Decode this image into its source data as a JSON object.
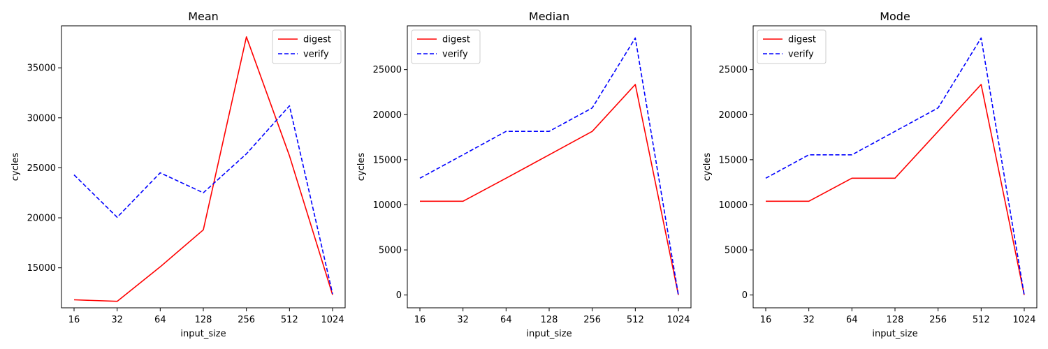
{
  "colors": {
    "digest": "#ff0000",
    "verify": "#0000ff"
  },
  "chart_data": [
    {
      "type": "line",
      "title": "Mean",
      "xlabel": "input_size",
      "ylabel": "cycles",
      "categories": [
        "16",
        "32",
        "64",
        "128",
        "256",
        "512",
        "1024"
      ],
      "yticks": [
        "15000",
        "20000",
        "25000",
        "30000",
        "35000"
      ],
      "ylim": [
        11000,
        39200
      ],
      "grid": false,
      "legend": "top-right",
      "series": [
        {
          "name": "digest",
          "style": "solid",
          "values": [
            11800,
            11650,
            15100,
            18800,
            38100,
            26200,
            12300
          ]
        },
        {
          "name": "verify",
          "style": "dashed",
          "values": [
            24300,
            20050,
            24500,
            22500,
            26400,
            31200,
            12400
          ]
        }
      ]
    },
    {
      "type": "line",
      "title": "Median",
      "xlabel": "input_size",
      "ylabel": "cycles",
      "categories": [
        "16",
        "32",
        "64",
        "128",
        "256",
        "512",
        "1024"
      ],
      "yticks": [
        "0",
        "5000",
        "10000",
        "15000",
        "20000",
        "25000"
      ],
      "ylim": [
        -1420,
        29850
      ],
      "grid": false,
      "legend": "top-left",
      "series": [
        {
          "name": "digest",
          "style": "solid",
          "values": [
            10400,
            10400,
            12950,
            15550,
            18150,
            23350,
            0
          ]
        },
        {
          "name": "verify",
          "style": "dashed",
          "values": [
            12950,
            15550,
            18150,
            18150,
            20750,
            28500,
            0
          ]
        }
      ]
    },
    {
      "type": "line",
      "title": "Mode",
      "xlabel": "input_size",
      "ylabel": "cycles",
      "categories": [
        "16",
        "32",
        "64",
        "128",
        "256",
        "512",
        "1024"
      ],
      "yticks": [
        "0",
        "5000",
        "10000",
        "15000",
        "20000",
        "25000"
      ],
      "ylim": [
        -1420,
        29850
      ],
      "grid": false,
      "legend": "top-left",
      "series": [
        {
          "name": "digest",
          "style": "solid",
          "values": [
            10400,
            10400,
            12950,
            12950,
            18150,
            23350,
            0
          ]
        },
        {
          "name": "verify",
          "style": "dashed",
          "values": [
            12950,
            15550,
            15550,
            18150,
            20750,
            28500,
            0
          ]
        }
      ]
    }
  ]
}
